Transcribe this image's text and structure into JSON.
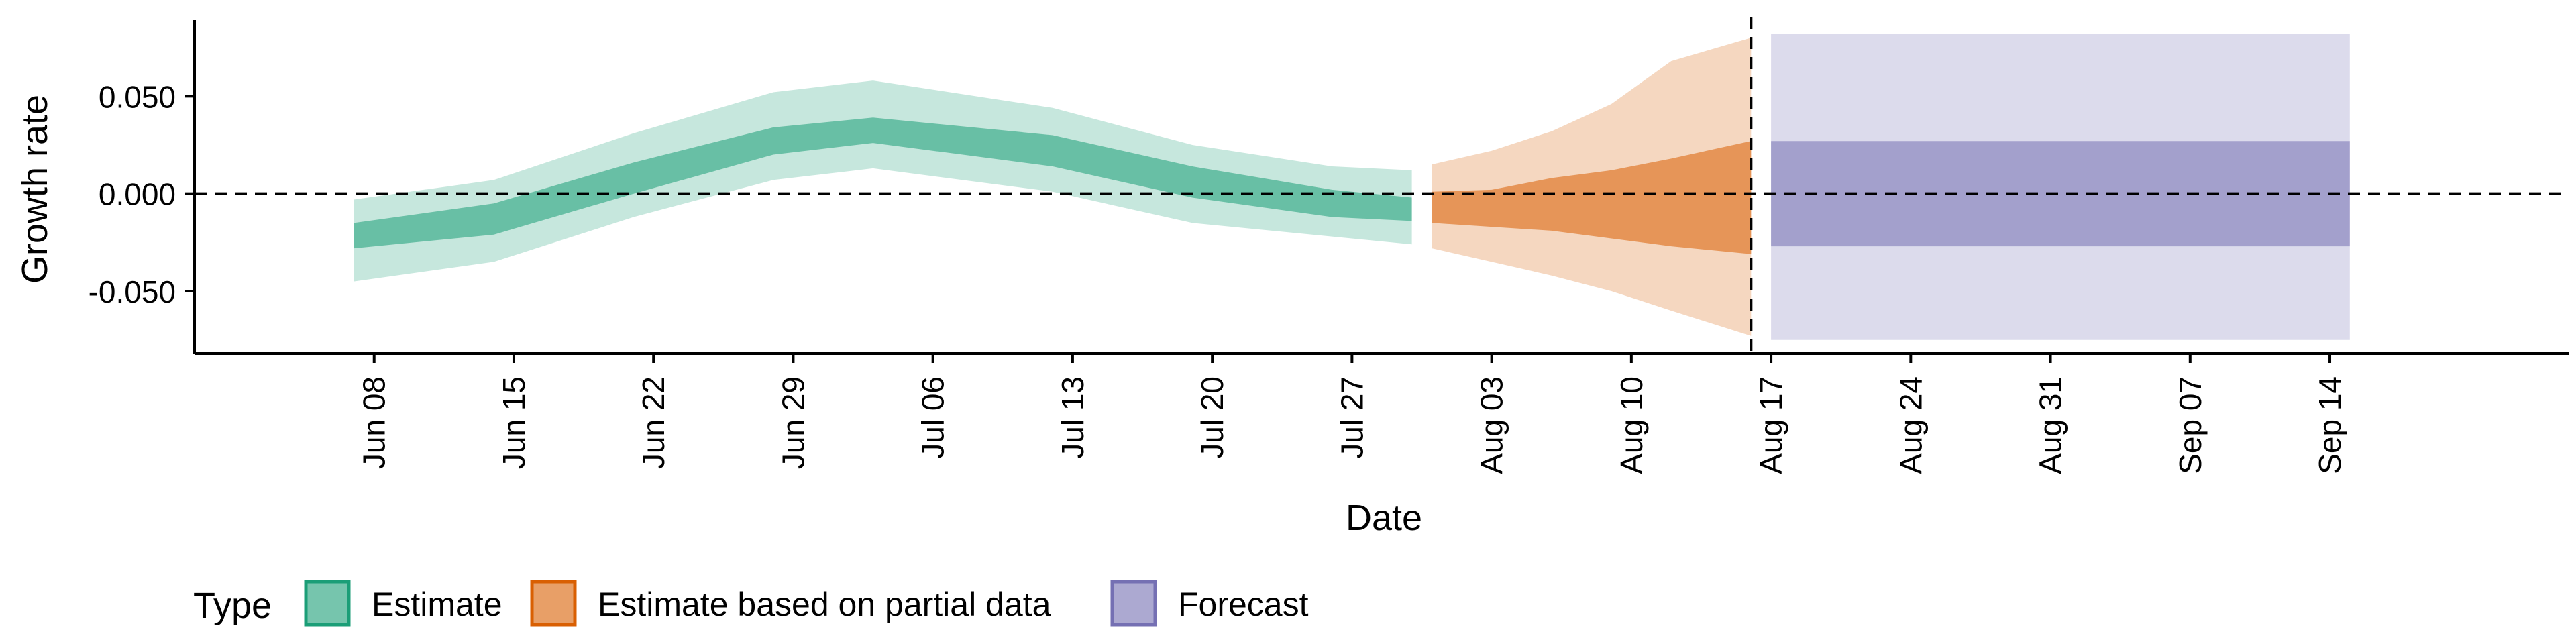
{
  "chart_data": {
    "type": "area",
    "xlabel": "Date",
    "ylabel": "Growth rate",
    "x_ticks": [
      "Jun 08",
      "Jun 15",
      "Jun 22",
      "Jun 29",
      "Jul 06",
      "Jul 13",
      "Jul 20",
      "Jul 27",
      "Aug 03",
      "Aug 10",
      "Aug 17",
      "Aug 24",
      "Aug 31",
      "Sep 07",
      "Sep 14"
    ],
    "y_ticks": [
      "0.050",
      "0.000",
      "-0.050"
    ],
    "y_tick_values": [
      0.05,
      0.0,
      -0.05
    ],
    "ylim": [
      -0.082,
      0.089
    ],
    "xlim": [
      "2020-05-30",
      "2020-09-26"
    ],
    "hline": 0.0,
    "vline": "2020-08-16",
    "legend": {
      "title": "Type",
      "position": "bottom-left"
    },
    "series": [
      {
        "name": "Estimate",
        "color": "#1b9e77",
        "x": [
          "2020-06-07",
          "2020-06-14",
          "2020-06-21",
          "2020-06-28",
          "2020-07-03",
          "2020-07-12",
          "2020-07-19",
          "2020-07-26",
          "2020-07-30"
        ],
        "mid": [
          -0.021,
          -0.013,
          0.008,
          0.027,
          0.033,
          0.022,
          0.006,
          -0.006,
          -0.008
        ],
        "upper_50": [
          -0.015,
          -0.005,
          0.016,
          0.034,
          0.039,
          0.03,
          0.014,
          0.002,
          -0.002
        ],
        "lower_50": [
          -0.028,
          -0.021,
          0.0,
          0.02,
          0.026,
          0.014,
          -0.002,
          -0.012,
          -0.014
        ],
        "upper_90": [
          -0.003,
          0.007,
          0.031,
          0.052,
          0.058,
          0.044,
          0.025,
          0.014,
          0.012
        ],
        "lower_90": [
          -0.045,
          -0.035,
          -0.012,
          0.007,
          0.013,
          0.001,
          -0.015,
          -0.022,
          -0.026
        ]
      },
      {
        "name": "Estimate based on partial data",
        "color": "#d95f02",
        "x": [
          "2020-07-31",
          "2020-08-03",
          "2020-08-06",
          "2020-08-09",
          "2020-08-12",
          "2020-08-16"
        ],
        "mid": [
          -0.007,
          -0.008,
          -0.006,
          -0.004,
          -0.005,
          -0.003
        ],
        "upper_50": [
          0.001,
          0.002,
          0.008,
          0.012,
          0.018,
          0.027
        ],
        "lower_50": [
          -0.015,
          -0.017,
          -0.019,
          -0.023,
          -0.027,
          -0.031
        ],
        "upper_90": [
          0.015,
          0.022,
          0.032,
          0.046,
          0.068,
          0.08
        ],
        "lower_90": [
          -0.028,
          -0.035,
          -0.042,
          -0.05,
          -0.06,
          -0.073
        ]
      },
      {
        "name": "Forecast",
        "color": "#7570b3",
        "x": [
          "2020-08-17",
          "2020-09-15"
        ],
        "mid": [
          0.0,
          0.0
        ],
        "upper_50": [
          0.027,
          0.027
        ],
        "lower_50": [
          -0.027,
          -0.027
        ],
        "upper_90": [
          0.082,
          0.082
        ],
        "lower_90": [
          -0.075,
          -0.075
        ]
      }
    ]
  }
}
